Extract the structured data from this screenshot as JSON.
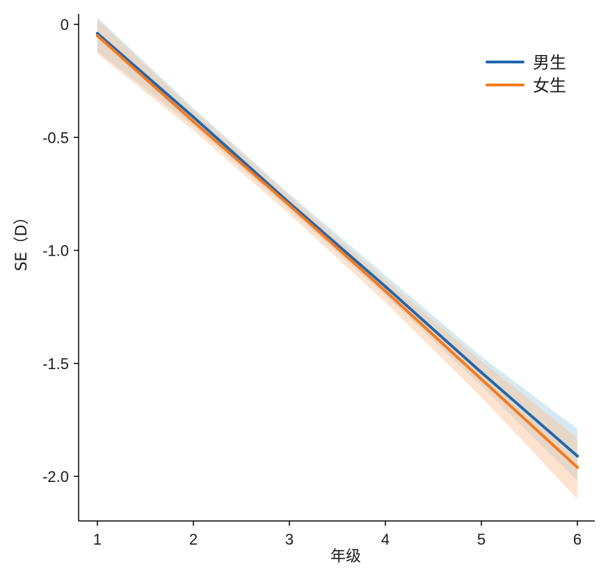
{
  "chart_data": {
    "type": "line",
    "xlabel": "年级",
    "ylabel": "SE（D）",
    "xlim": [
      0.8,
      6.2
    ],
    "ylim": [
      -2.2,
      0.03
    ],
    "xticks": [
      1,
      2,
      3,
      4,
      5,
      6
    ],
    "yticks": [
      0,
      -0.5,
      -1.0,
      -1.5,
      -2.0
    ],
    "ytick_labels": [
      "0",
      "-0.5",
      "-1.0",
      "-1.5",
      "-2.0"
    ],
    "grid": false,
    "legend_position": "top-right",
    "series": [
      {
        "name": "男生",
        "color": "#2166ac",
        "band_color": "#9ecae1",
        "x": [
          1,
          2,
          3,
          4,
          5,
          6
        ],
        "y": [
          -0.04,
          -0.41,
          -0.79,
          -1.16,
          -1.54,
          -1.91
        ],
        "lower": [
          -0.12,
          -0.45,
          -0.82,
          -1.2,
          -1.6,
          -2.02
        ],
        "upper": [
          0.03,
          -0.37,
          -0.75,
          -1.11,
          -1.47,
          -1.79
        ]
      },
      {
        "name": "女生",
        "color": "#f57a1f",
        "band_color": "#fdbe8f",
        "x": [
          1,
          2,
          3,
          4,
          5,
          6
        ],
        "y": [
          -0.05,
          -0.43,
          -0.8,
          -1.18,
          -1.57,
          -1.96
        ],
        "lower": [
          -0.13,
          -0.47,
          -0.84,
          -1.23,
          -1.65,
          -2.1
        ],
        "upper": [
          0.02,
          -0.38,
          -0.76,
          -1.13,
          -1.49,
          -1.83
        ]
      }
    ]
  }
}
